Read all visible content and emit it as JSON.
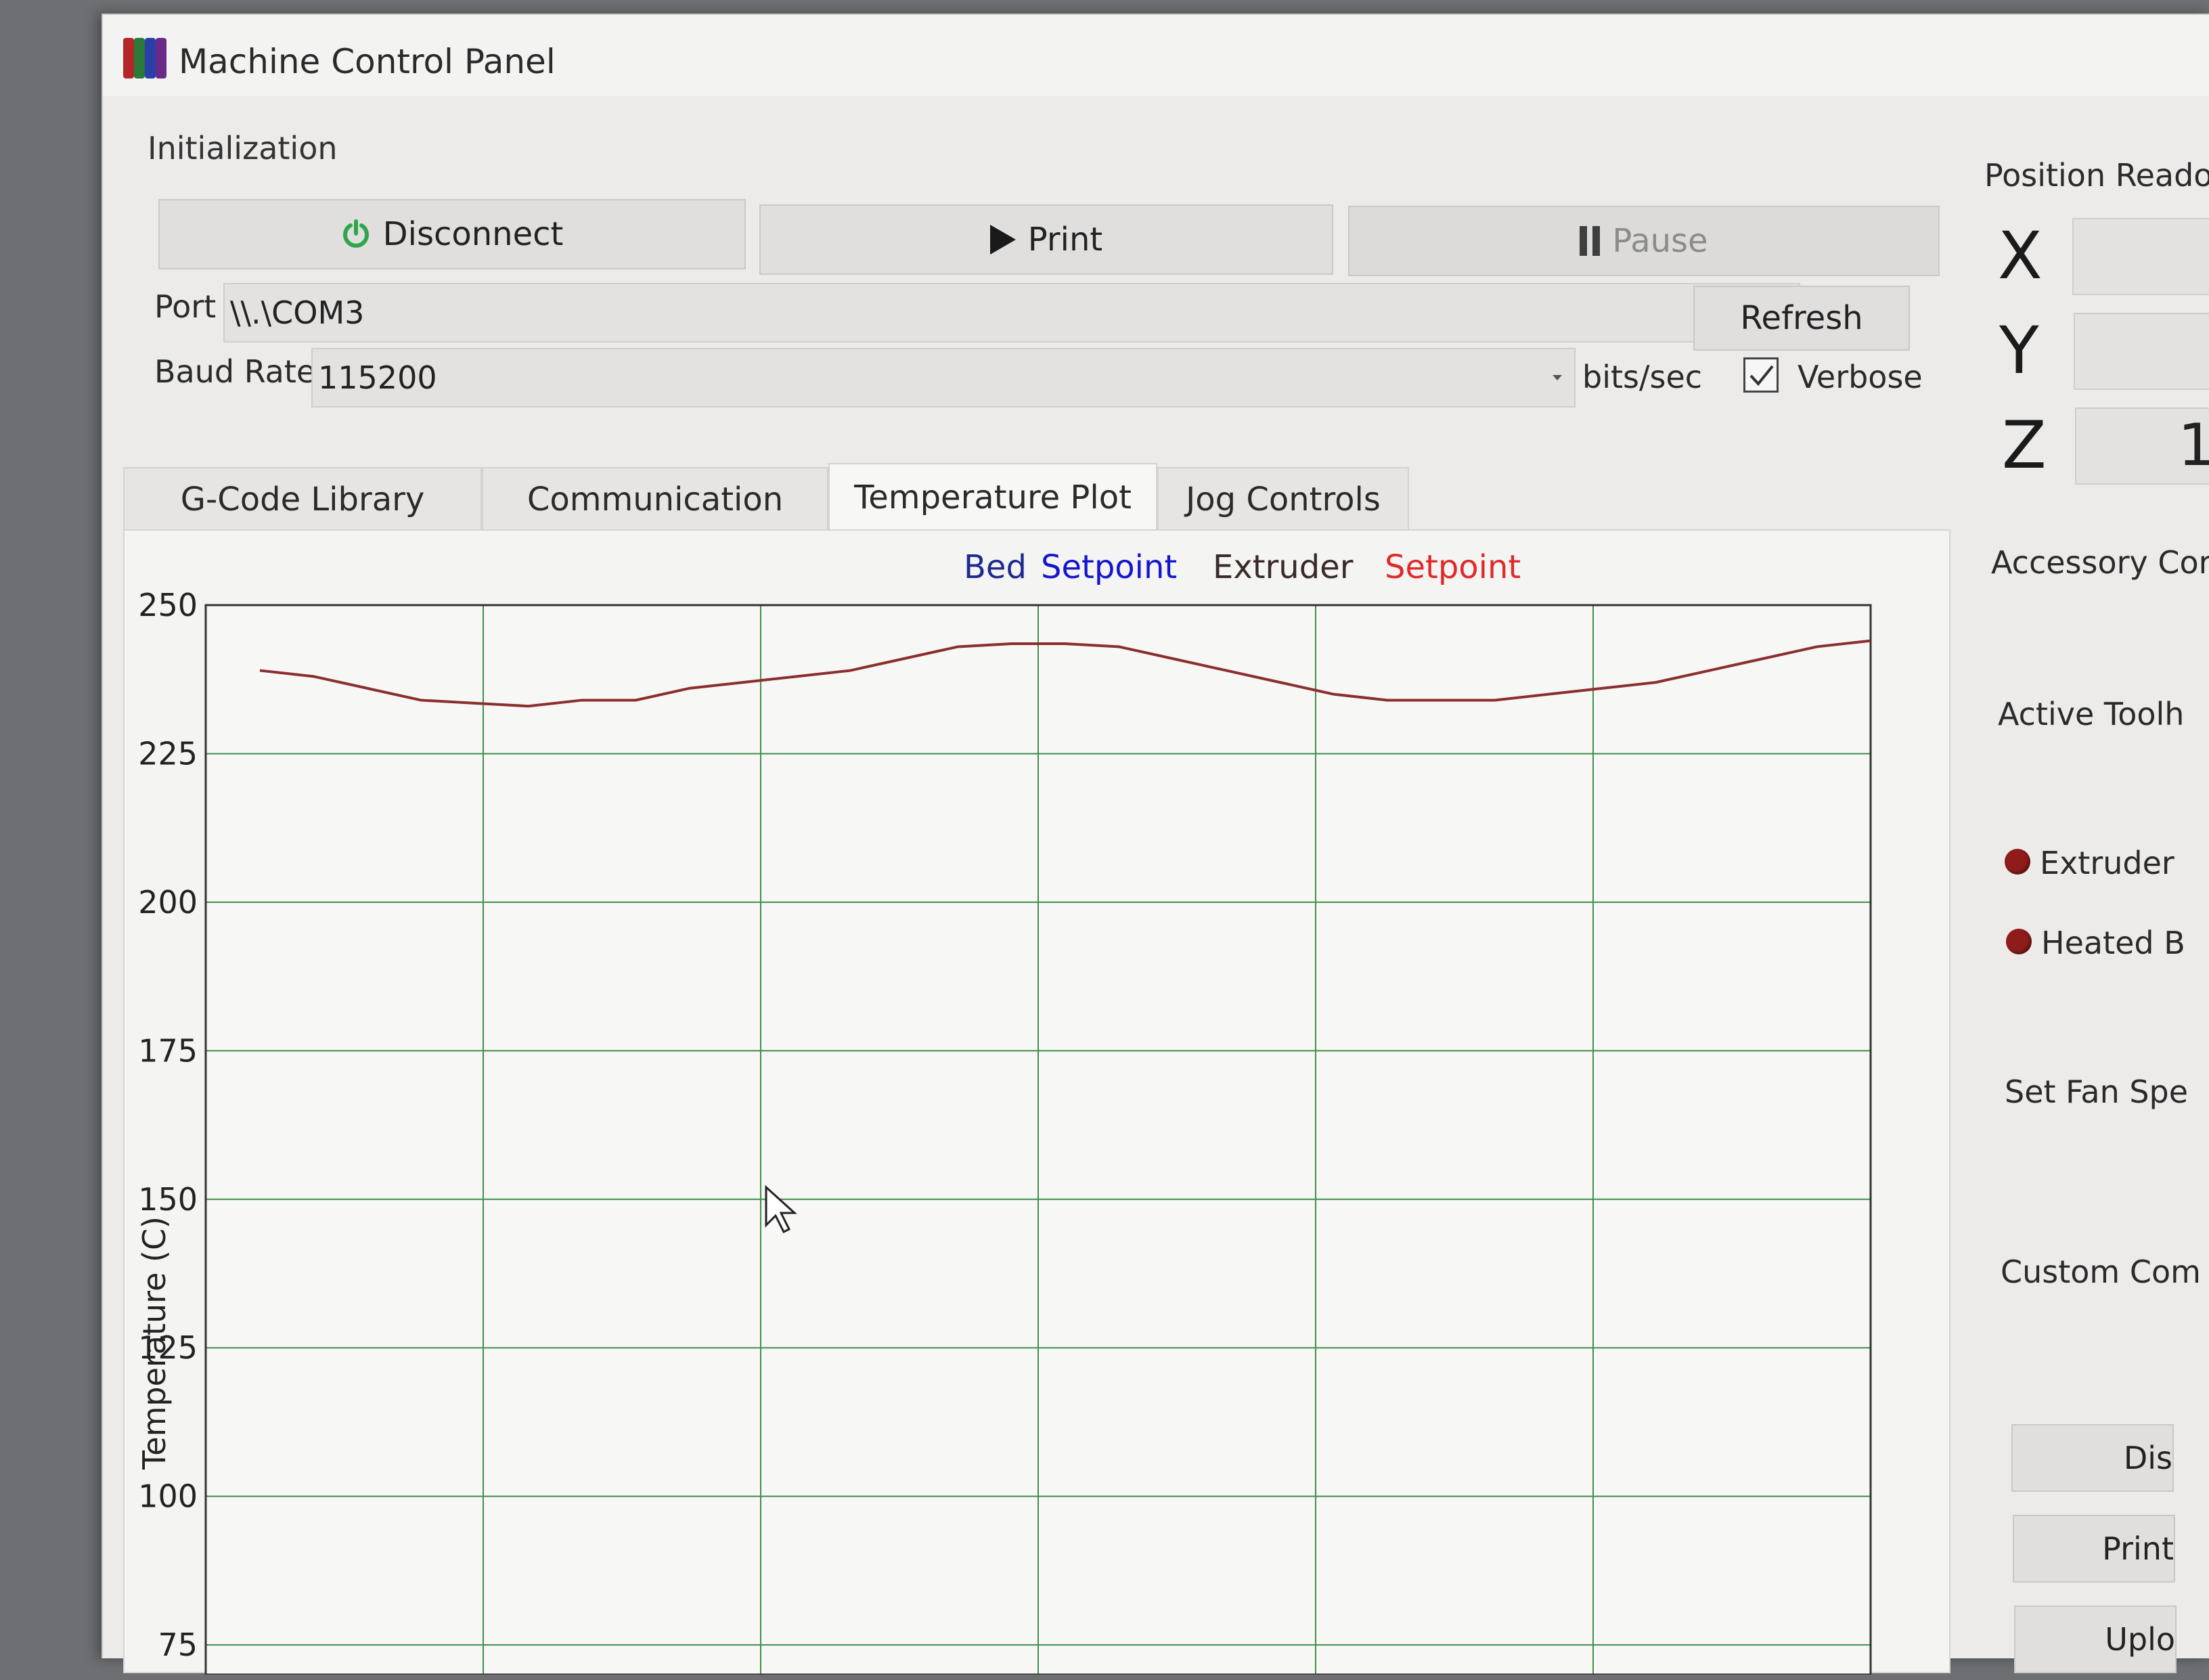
{
  "window": {
    "title": "Machine Control Panel"
  },
  "initialization": {
    "group_label": "Initialization",
    "disconnect_label": "Disconnect",
    "print_label": "Print",
    "pause_label": "Pause",
    "port_label": "Port",
    "port_value": "\\\\.\\COM3",
    "refresh_label": "Refresh",
    "baud_label": "Baud Rate",
    "baud_value": "115200",
    "baud_unit": "bits/sec",
    "verbose_label": "Verbose",
    "verbose_checked": true
  },
  "tabs": [
    {
      "label": "G-Code Library",
      "active": false
    },
    {
      "label": "Communication",
      "active": false
    },
    {
      "label": "Temperature Plot",
      "active": true
    },
    {
      "label": "Jog Controls",
      "active": false
    }
  ],
  "legend": [
    {
      "label": "Bed",
      "color": "#1d2a8f"
    },
    {
      "label": "Setpoint",
      "color": "#1515d0"
    },
    {
      "label": "Extruder",
      "color": "#3a2a2a"
    },
    {
      "label": "Setpoint",
      "color": "#e02a2a"
    }
  ],
  "side_panel": {
    "position_label": "Position Reado",
    "axes": [
      "X",
      "Y",
      "Z"
    ],
    "z_value_partial": "1[",
    "accessory_label": "Accessory Cor",
    "active_toolhead_label": "Active Toolh",
    "extruder_label": "Extruder",
    "heated_bed_label": "Heated B",
    "fan_label": "Set Fan Spe",
    "custom_label": "Custom Com",
    "buttons": [
      "Dis",
      "Print",
      "Uplo"
    ],
    "led_color": "#8f1b1b"
  },
  "chart_data": {
    "type": "line",
    "title": "",
    "ylabel": "Temperature (C)",
    "ylim": [
      70,
      250
    ],
    "yticks": [
      250,
      225,
      200,
      175,
      150,
      125,
      100,
      75
    ],
    "grid": true,
    "legend_position": "top-center",
    "x": [
      0,
      1,
      2,
      3,
      4,
      5,
      6,
      7,
      8,
      9,
      10,
      11,
      12,
      13,
      14,
      15,
      16,
      17,
      18,
      19,
      20,
      21,
      22,
      23,
      24,
      25,
      26,
      27,
      28,
      29,
      30
    ],
    "series": [
      {
        "name": "Extruder",
        "color": "#8b2e2e",
        "values": [
          239,
          238,
          236,
          234,
          233.5,
          233,
          234,
          234,
          236,
          237,
          238,
          239,
          241,
          243,
          243.5,
          243.5,
          243,
          241,
          239,
          237,
          235,
          234,
          234,
          234,
          235,
          236,
          237,
          239,
          241,
          243,
          244
        ]
      }
    ]
  }
}
